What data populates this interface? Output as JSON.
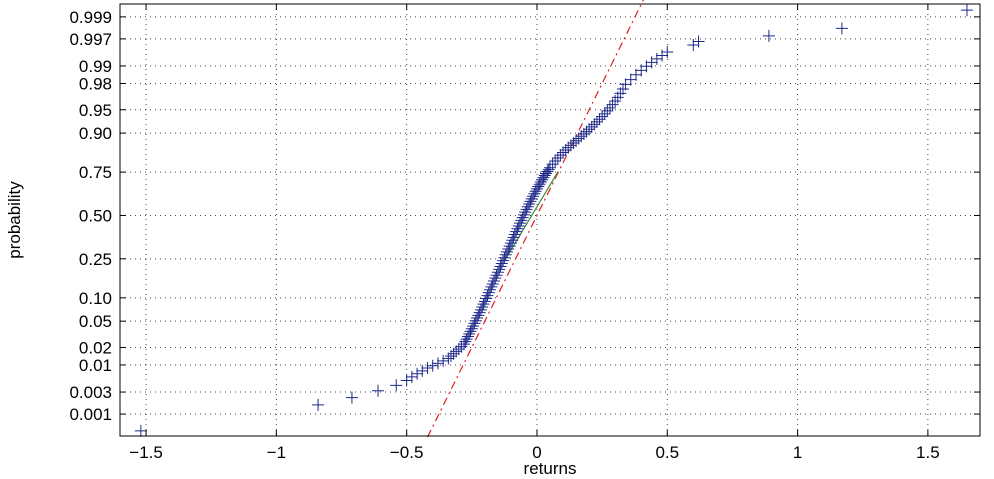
{
  "chart_data": {
    "type": "scatter",
    "title": "",
    "xlabel": "returns",
    "ylabel": "probability",
    "y_scale": "normal-probability",
    "grid": true,
    "legend": "none",
    "xlim": [
      -1.6,
      1.7
    ],
    "ylim_probability": [
      0.0003,
      0.9995
    ],
    "x_ticks": [
      -1.5,
      -1,
      -0.5,
      0,
      0.5,
      1,
      1.5
    ],
    "x_tick_labels": [
      "−1.5",
      "−1",
      "−0.5",
      "0",
      "0.5",
      "1",
      "1.5"
    ],
    "y_ticks": [
      0.001,
      0.003,
      0.01,
      0.02,
      0.05,
      0.1,
      0.25,
      0.5,
      0.75,
      0.9,
      0.95,
      0.98,
      0.99,
      0.997,
      0.999
    ],
    "y_tick_labels": [
      "0.001",
      "0.003",
      "0.01",
      "0.02",
      "0.05",
      "0.10",
      "0.25",
      "0.50",
      "0.75",
      "0.90",
      "0.95",
      "0.98",
      "0.99",
      "0.997",
      "0.999"
    ],
    "colors": {
      "markers": "#1f2a8a",
      "reference_line": "#e02020",
      "fit_segment": "#3a8a3a",
      "grid": "#444444"
    },
    "series": [
      {
        "marker": "+",
        "points": [
          [
            -1.52,
            0.0004
          ],
          [
            -0.84,
            0.0016
          ],
          [
            -0.71,
            0.0023
          ],
          [
            -0.61,
            0.0032
          ],
          [
            -0.54,
            0.0041
          ],
          [
            -0.5,
            0.0051
          ],
          [
            -0.48,
            0.006
          ],
          [
            -0.46,
            0.0069
          ],
          [
            -0.44,
            0.0078
          ],
          [
            -0.42,
            0.0088
          ],
          [
            -0.4,
            0.0097
          ],
          [
            -0.38,
            0.0107
          ],
          [
            -0.36,
            0.0118
          ],
          [
            -0.34,
            0.013
          ],
          [
            -0.33,
            0.0143
          ],
          [
            -0.32,
            0.0157
          ],
          [
            -0.31,
            0.0172
          ],
          [
            -0.3,
            0.0188
          ],
          [
            -0.29,
            0.0206
          ],
          [
            -0.28,
            0.0226
          ],
          [
            -0.275,
            0.0248
          ],
          [
            -0.27,
            0.0272
          ],
          [
            -0.265,
            0.0298
          ],
          [
            -0.26,
            0.0326
          ],
          [
            -0.255,
            0.0356
          ],
          [
            -0.25,
            0.039
          ],
          [
            -0.245,
            0.0426
          ],
          [
            -0.24,
            0.0465
          ],
          [
            -0.235,
            0.0507
          ],
          [
            -0.23,
            0.0552
          ],
          [
            -0.225,
            0.0601
          ],
          [
            -0.22,
            0.0654
          ],
          [
            -0.215,
            0.071
          ],
          [
            -0.21,
            0.0772
          ],
          [
            -0.205,
            0.0838
          ],
          [
            -0.2,
            0.0908
          ],
          [
            -0.195,
            0.0983
          ],
          [
            -0.19,
            0.1063
          ],
          [
            -0.185,
            0.1148
          ],
          [
            -0.18,
            0.1238
          ],
          [
            -0.175,
            0.1333
          ],
          [
            -0.17,
            0.1433
          ],
          [
            -0.165,
            0.1538
          ],
          [
            -0.16,
            0.1648
          ],
          [
            -0.155,
            0.1763
          ],
          [
            -0.15,
            0.1883
          ],
          [
            -0.145,
            0.2008
          ],
          [
            -0.14,
            0.2138
          ],
          [
            -0.135,
            0.2272
          ],
          [
            -0.13,
            0.2411
          ],
          [
            -0.125,
            0.2555
          ],
          [
            -0.12,
            0.2703
          ],
          [
            -0.115,
            0.2855
          ],
          [
            -0.11,
            0.3011
          ],
          [
            -0.105,
            0.317
          ],
          [
            -0.1,
            0.3333
          ],
          [
            -0.095,
            0.3498
          ],
          [
            -0.09,
            0.3666
          ],
          [
            -0.085,
            0.3835
          ],
          [
            -0.08,
            0.4006
          ],
          [
            -0.075,
            0.4178
          ],
          [
            -0.07,
            0.4351
          ],
          [
            -0.065,
            0.4524
          ],
          [
            -0.06,
            0.4697
          ],
          [
            -0.055,
            0.4869
          ],
          [
            -0.05,
            0.504
          ],
          [
            -0.045,
            0.521
          ],
          [
            -0.04,
            0.5378
          ],
          [
            -0.035,
            0.5543
          ],
          [
            -0.03,
            0.5706
          ],
          [
            -0.025,
            0.5866
          ],
          [
            -0.02,
            0.6022
          ],
          [
            -0.015,
            0.6174
          ],
          [
            -0.01,
            0.6322
          ],
          [
            -0.005,
            0.6465
          ],
          [
            0.0,
            0.6603
          ],
          [
            0.005,
            0.6737
          ],
          [
            0.01,
            0.6866
          ],
          [
            0.015,
            0.699
          ],
          [
            0.02,
            0.7108
          ],
          [
            0.025,
            0.7222
          ],
          [
            0.03,
            0.733
          ],
          [
            0.035,
            0.7433
          ],
          [
            0.04,
            0.7531
          ],
          [
            0.045,
            0.7624
          ],
          [
            0.05,
            0.7712
          ],
          [
            0.06,
            0.7874
          ],
          [
            0.07,
            0.8018
          ],
          [
            0.08,
            0.8146
          ],
          [
            0.09,
            0.826
          ],
          [
            0.1,
            0.8362
          ],
          [
            0.11,
            0.8456
          ],
          [
            0.12,
            0.8543
          ],
          [
            0.13,
            0.8625
          ],
          [
            0.14,
            0.8702
          ],
          [
            0.15,
            0.8775
          ],
          [
            0.16,
            0.8845
          ],
          [
            0.17,
            0.8912
          ],
          [
            0.18,
            0.8977
          ],
          [
            0.19,
            0.904
          ],
          [
            0.2,
            0.9101
          ],
          [
            0.21,
            0.916
          ],
          [
            0.22,
            0.9217
          ],
          [
            0.23,
            0.9273
          ],
          [
            0.24,
            0.9327
          ],
          [
            0.25,
            0.938
          ],
          [
            0.26,
            0.9431
          ],
          [
            0.27,
            0.9481
          ],
          [
            0.28,
            0.953
          ],
          [
            0.29,
            0.9578
          ],
          [
            0.3,
            0.9625
          ],
          [
            0.31,
            0.967
          ],
          [
            0.32,
            0.9713
          ],
          [
            0.33,
            0.9755
          ],
          [
            0.34,
            0.9793
          ],
          [
            0.36,
            0.9827
          ],
          [
            0.38,
            0.9857
          ],
          [
            0.4,
            0.988
          ],
          [
            0.42,
            0.9899
          ],
          [
            0.44,
            0.9914
          ],
          [
            0.46,
            0.9926
          ],
          [
            0.48,
            0.9936
          ],
          [
            0.5,
            0.9945
          ],
          [
            0.6,
            0.996
          ],
          [
            0.62,
            0.9966
          ],
          [
            0.89,
            0.9974
          ],
          [
            1.17,
            0.9982
          ],
          [
            1.65,
            0.9993
          ]
        ]
      }
    ],
    "reference_line": {
      "style": "dash-dot",
      "points": [
        [
          -0.42,
          0.00028
        ],
        [
          0.42,
          0.99972
        ]
      ]
    },
    "fit_segment": {
      "style": "solid",
      "points": [
        [
          -0.12,
          0.25
        ],
        [
          0.08,
          0.75
        ]
      ]
    }
  }
}
